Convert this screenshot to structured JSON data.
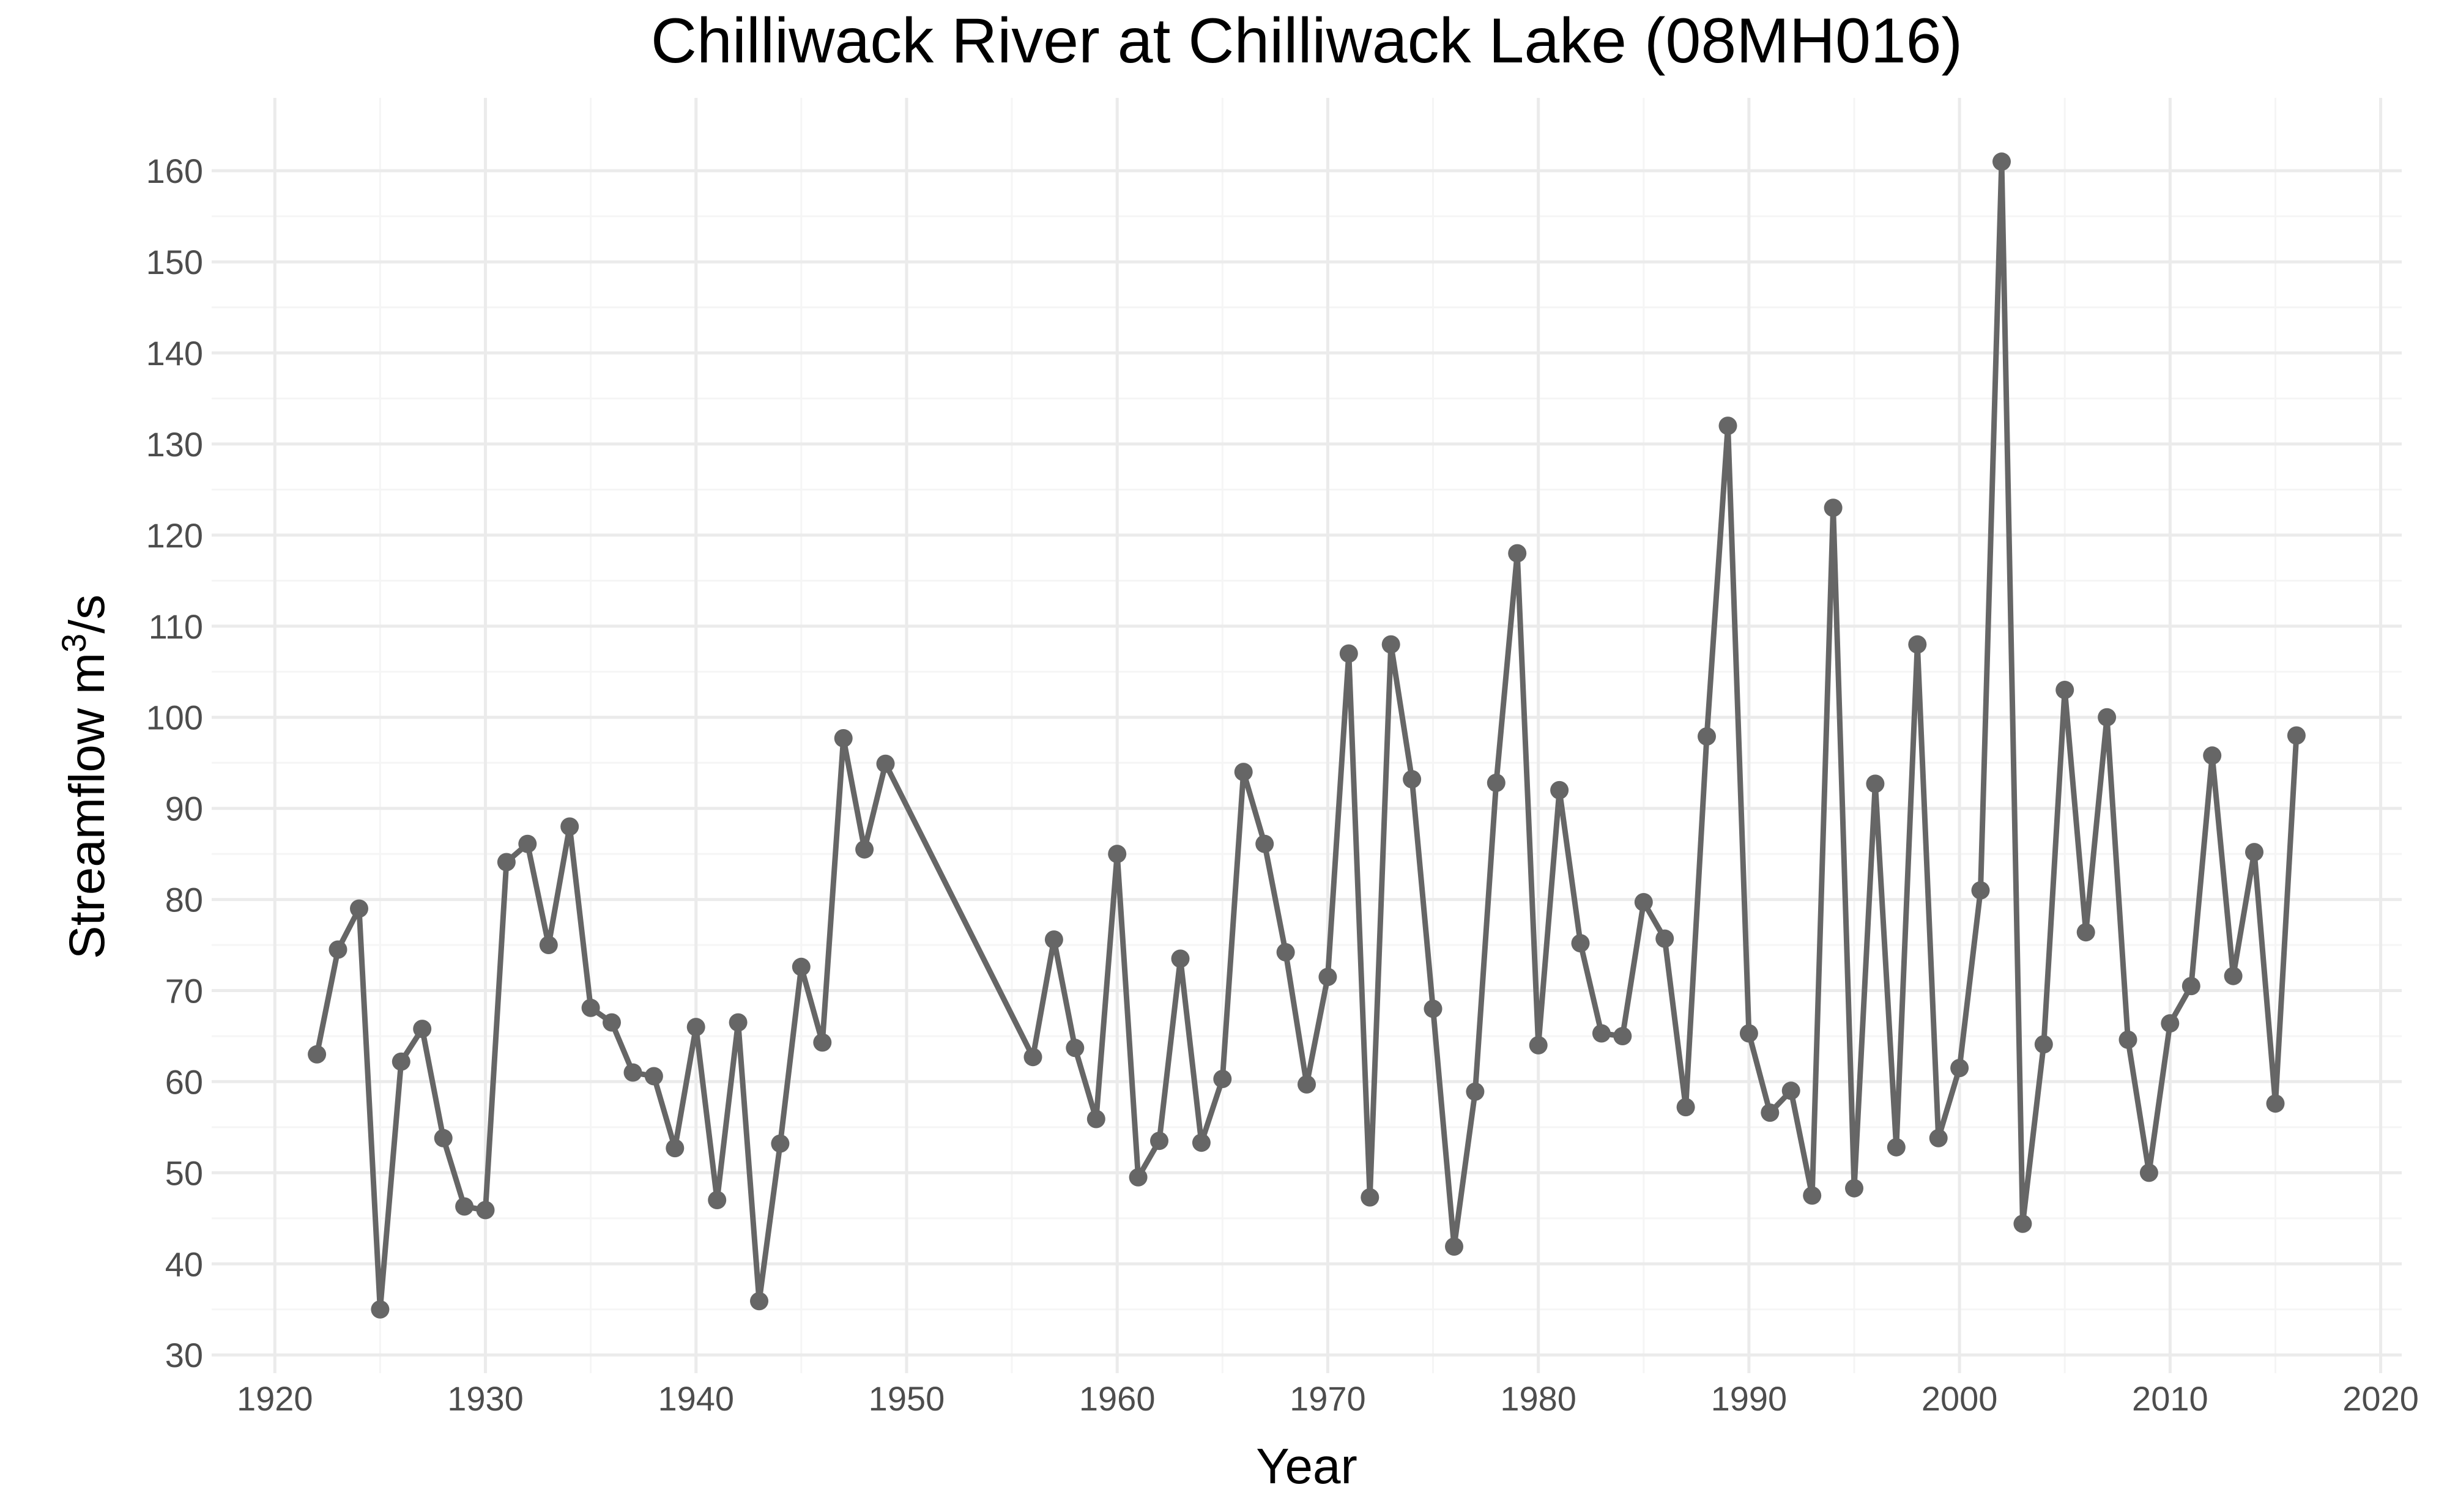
{
  "chart_data": {
    "type": "line",
    "title": "Chilliwack River at Chilliwack Lake (08MH016)",
    "xlabel": "Year",
    "ylabel": "Streamflow m",
    "ylabel_sup": "3",
    "ylabel_tail": "/s",
    "xlim": [
      1920,
      2020
    ],
    "ylim": [
      30,
      160
    ],
    "xticks": [
      1920,
      1930,
      1940,
      1950,
      1960,
      1970,
      1980,
      1990,
      2000,
      2010,
      2020
    ],
    "yticks": [
      30,
      40,
      50,
      60,
      70,
      80,
      90,
      100,
      110,
      120,
      130,
      140,
      150,
      160
    ],
    "grid": true,
    "line_color": "#666666",
    "series": [
      {
        "x": [
          1922,
          1923,
          1924,
          1925,
          1926,
          1927,
          1928,
          1929,
          1930,
          1931,
          1932,
          1933,
          1934,
          1935,
          1936,
          1937,
          1938,
          1939,
          1940,
          1941,
          1942,
          1943,
          1944,
          1945,
          1946,
          1947,
          1948,
          1949,
          1956,
          1957,
          1958,
          1959,
          1960,
          1961,
          1962,
          1963,
          1964,
          1965,
          1966,
          1967,
          1968,
          1969,
          1970,
          1971,
          1972,
          1973,
          1974,
          1975,
          1976,
          1977,
          1978,
          1979,
          1980,
          1981,
          1982,
          1983,
          1984,
          1985,
          1986,
          1987,
          1988,
          1989,
          1990,
          1991,
          1992,
          1993,
          1994,
          1995,
          1996,
          1997,
          1998,
          1999,
          2000,
          2001,
          2002,
          2003,
          2004,
          2005,
          2006,
          2007,
          2008,
          2009,
          2010,
          2011,
          2012,
          2013,
          2014,
          2015,
          2016
        ],
        "values": [
          63,
          74.5,
          79,
          35,
          62.2,
          65.8,
          53.8,
          46.3,
          45.9,
          84.1,
          86.1,
          75,
          88,
          68.1,
          66.5,
          61,
          60.6,
          52.7,
          66,
          47,
          66.5,
          35.9,
          53.2,
          72.6,
          64.3,
          97.7,
          85.5,
          94.9,
          62.7,
          75.6,
          63.7,
          55.9,
          85,
          49.5,
          53.5,
          73.5,
          53.3,
          60.3,
          94,
          86.1,
          74.2,
          59.7,
          71.5,
          107,
          47.3,
          108,
          93.2,
          68,
          41.9,
          58.9,
          92.8,
          118,
          64,
          92,
          75.2,
          65.3,
          65,
          79.7,
          75.7,
          57.2,
          97.9,
          132,
          65.3,
          56.6,
          59,
          47.5,
          123,
          48.3,
          92.7,
          52.8,
          108,
          53.8,
          61.5,
          81,
          161,
          44.4,
          64.1,
          103,
          76.4,
          100,
          64.6,
          50,
          66.4,
          70.5,
          95.8,
          71.6,
          85.2,
          57.6,
          98
        ]
      }
    ]
  }
}
